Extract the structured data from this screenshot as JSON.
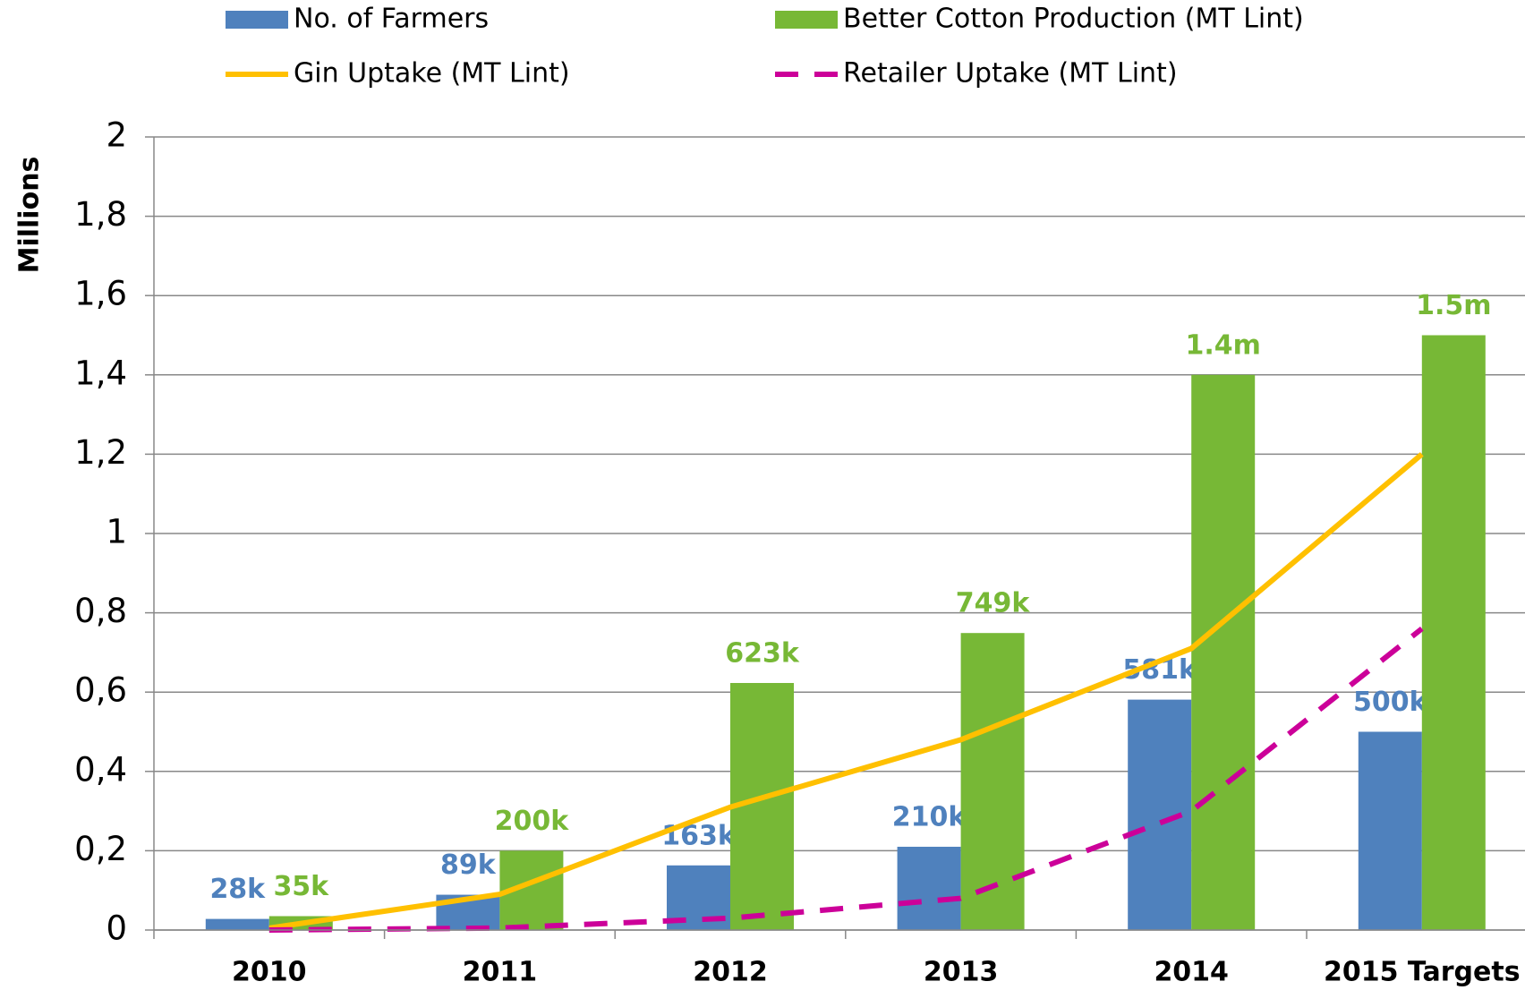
{
  "chart_data": {
    "type": "bar",
    "y_label": "Millions",
    "categories": [
      "2010",
      "2011",
      "2012",
      "2013",
      "2014",
      "2015 Targets"
    ],
    "series": [
      {
        "name": "No. of Farmers",
        "type": "bar",
        "color": "#4f81bd",
        "values": [
          0.028,
          0.089,
          0.163,
          0.21,
          0.581,
          0.5
        ],
        "value_labels": [
          "28k",
          "89k",
          "163k",
          "210k",
          "581k",
          "500k"
        ]
      },
      {
        "name": "Better Cotton Production (MT Lint)",
        "type": "bar",
        "color": "#77b836",
        "values": [
          0.035,
          0.2,
          0.623,
          0.749,
          1.4,
          1.5
        ],
        "value_labels": [
          "35k",
          "200k",
          "623k",
          "749k",
          "1.4m",
          "1.5m"
        ]
      },
      {
        "name": "Gin Uptake (MT Lint)",
        "type": "line",
        "color": "#ffc000",
        "values": [
          0.005,
          0.09,
          0.31,
          0.48,
          0.71,
          1.2
        ]
      },
      {
        "name": "Retailer Uptake (MT Lint)",
        "type": "dashed",
        "color": "#cc0099",
        "values": [
          0.0,
          0.005,
          0.03,
          0.08,
          0.3,
          0.76
        ]
      }
    ],
    "ylim": [
      0,
      2
    ],
    "yticks": [
      0,
      {
        "value": 0.2,
        "label": "0,2"
      },
      {
        "value": 0.4,
        "label": "0,4"
      },
      {
        "value": 0.6,
        "label": "0,6"
      },
      {
        "value": 0.8,
        "label": "0,8"
      },
      1,
      {
        "value": 1.2,
        "label": "1,2"
      },
      {
        "value": 1.4,
        "label": "1,4"
      },
      {
        "value": 1.6,
        "label": "1,6"
      },
      {
        "value": 1.8,
        "label": "1,8"
      },
      2
    ],
    "grid": true
  }
}
